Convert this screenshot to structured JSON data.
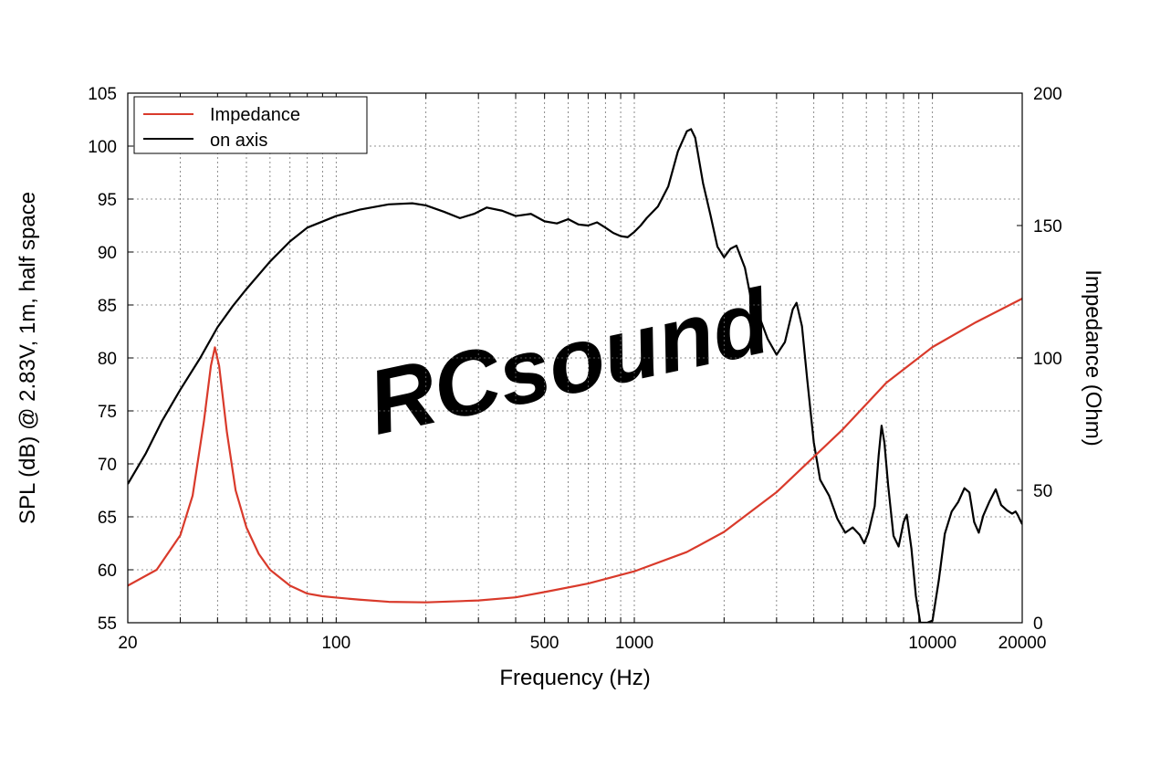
{
  "chart_data": {
    "type": "line",
    "watermark": "RCsound",
    "xlabel": "Frequency (Hz)",
    "ylabel_left": "SPL (dB) @ 2.83V, 1m, half space",
    "ylabel_right": "Impedance (Ohm)",
    "x_scale": "log",
    "xlim": [
      20,
      20000
    ],
    "ylim_left": [
      55,
      105
    ],
    "ylim_right": [
      0,
      200
    ],
    "x_tick_labels": [
      "20",
      "100",
      "500",
      "1000",
      "10000",
      "20000"
    ],
    "y_left_tick_labels": [
      "55",
      "60",
      "65",
      "70",
      "75",
      "80",
      "85",
      "90",
      "95",
      "100",
      "105"
    ],
    "y_right_tick_labels": [
      "0",
      "50",
      "100",
      "150",
      "200"
    ],
    "grid": true,
    "legend_position": "top-left",
    "legend": [
      {
        "name": "Impedance",
        "color": "#d93a2b"
      },
      {
        "name": "on axis",
        "color": "#000000"
      }
    ],
    "series": [
      {
        "name": "on axis",
        "axis": "left",
        "color": "#000000",
        "points": [
          [
            20,
            68.1
          ],
          [
            23,
            71
          ],
          [
            26,
            74
          ],
          [
            30,
            77
          ],
          [
            35,
            80
          ],
          [
            40,
            82.9
          ],
          [
            45,
            84.9
          ],
          [
            50,
            86.5
          ],
          [
            60,
            89.1
          ],
          [
            70,
            91
          ],
          [
            80,
            92.3
          ],
          [
            100,
            93.4
          ],
          [
            120,
            94
          ],
          [
            150,
            94.5
          ],
          [
            180,
            94.6
          ],
          [
            200,
            94.4
          ],
          [
            230,
            93.8
          ],
          [
            260,
            93.2
          ],
          [
            290,
            93.6
          ],
          [
            320,
            94.2
          ],
          [
            360,
            93.9
          ],
          [
            400,
            93.4
          ],
          [
            450,
            93.6
          ],
          [
            500,
            92.9
          ],
          [
            550,
            92.7
          ],
          [
            600,
            93.1
          ],
          [
            650,
            92.6
          ],
          [
            700,
            92.5
          ],
          [
            750,
            92.8
          ],
          [
            800,
            92.3
          ],
          [
            850,
            91.8
          ],
          [
            900,
            91.5
          ],
          [
            950,
            91.4
          ],
          [
            1000,
            91.9
          ],
          [
            1050,
            92.5
          ],
          [
            1100,
            93.2
          ],
          [
            1200,
            94.3
          ],
          [
            1300,
            96.2
          ],
          [
            1400,
            99.5
          ],
          [
            1500,
            101.4
          ],
          [
            1550,
            101.6
          ],
          [
            1600,
            100.8
          ],
          [
            1700,
            96.5
          ],
          [
            1800,
            93.5
          ],
          [
            1900,
            90.5
          ],
          [
            2000,
            89.5
          ],
          [
            2100,
            90.3
          ],
          [
            2200,
            90.6
          ],
          [
            2350,
            88.5
          ],
          [
            2500,
            84.6
          ],
          [
            2650,
            83.6
          ],
          [
            2800,
            81.8
          ],
          [
            3000,
            80.3
          ],
          [
            3200,
            81.5
          ],
          [
            3400,
            84.6
          ],
          [
            3500,
            85.2
          ],
          [
            3650,
            83
          ],
          [
            3800,
            78
          ],
          [
            4000,
            72
          ],
          [
            4200,
            68.5
          ],
          [
            4500,
            67
          ],
          [
            4800,
            64.8
          ],
          [
            5100,
            63.5
          ],
          [
            5400,
            64
          ],
          [
            5700,
            63.3
          ],
          [
            5900,
            62.5
          ],
          [
            6100,
            63.5
          ],
          [
            6400,
            66
          ],
          [
            6600,
            70.8
          ],
          [
            6750,
            73.6
          ],
          [
            6900,
            72
          ],
          [
            7100,
            68
          ],
          [
            7400,
            63.2
          ],
          [
            7700,
            62.2
          ],
          [
            8000,
            64.5
          ],
          [
            8200,
            65.2
          ],
          [
            8500,
            62
          ],
          [
            8800,
            57.5
          ],
          [
            9100,
            55
          ],
          [
            9600,
            55
          ],
          [
            10000,
            55.2
          ],
          [
            10500,
            59
          ],
          [
            11000,
            63.4
          ],
          [
            11600,
            65.5
          ],
          [
            12200,
            66.4
          ],
          [
            12800,
            67.7
          ],
          [
            13300,
            67.3
          ],
          [
            13800,
            64.5
          ],
          [
            14300,
            63.5
          ],
          [
            14800,
            65.1
          ],
          [
            15500,
            66.4
          ],
          [
            16300,
            67.6
          ],
          [
            17000,
            66.1
          ],
          [
            17800,
            65.6
          ],
          [
            18500,
            65.3
          ],
          [
            19000,
            65.5
          ],
          [
            19300,
            65.2
          ],
          [
            19600,
            64.8
          ],
          [
            20000,
            64.3
          ]
        ]
      },
      {
        "name": "Impedance",
        "axis": "right",
        "color": "#d93a2b",
        "points": [
          [
            20,
            14
          ],
          [
            25,
            20
          ],
          [
            30,
            33
          ],
          [
            33,
            48
          ],
          [
            36,
            76
          ],
          [
            38,
            97
          ],
          [
            39.2,
            104
          ],
          [
            40.5,
            97
          ],
          [
            43,
            72
          ],
          [
            46,
            50
          ],
          [
            50,
            36
          ],
          [
            55,
            26
          ],
          [
            60,
            20
          ],
          [
            70,
            14
          ],
          [
            80,
            11
          ],
          [
            90,
            10
          ],
          [
            100,
            9.5
          ],
          [
            120,
            8.7
          ],
          [
            150,
            7.9
          ],
          [
            200,
            7.7
          ],
          [
            300,
            8.4
          ],
          [
            400,
            9.6
          ],
          [
            500,
            11.6
          ],
          [
            700,
            14.8
          ],
          [
            1000,
            19.4
          ],
          [
            1500,
            26.7
          ],
          [
            2000,
            34.3
          ],
          [
            3000,
            49.3
          ],
          [
            5000,
            73
          ],
          [
            7000,
            90.6
          ],
          [
            10000,
            104.1
          ],
          [
            14000,
            113.5
          ],
          [
            20000,
            122.4
          ]
        ]
      }
    ]
  }
}
